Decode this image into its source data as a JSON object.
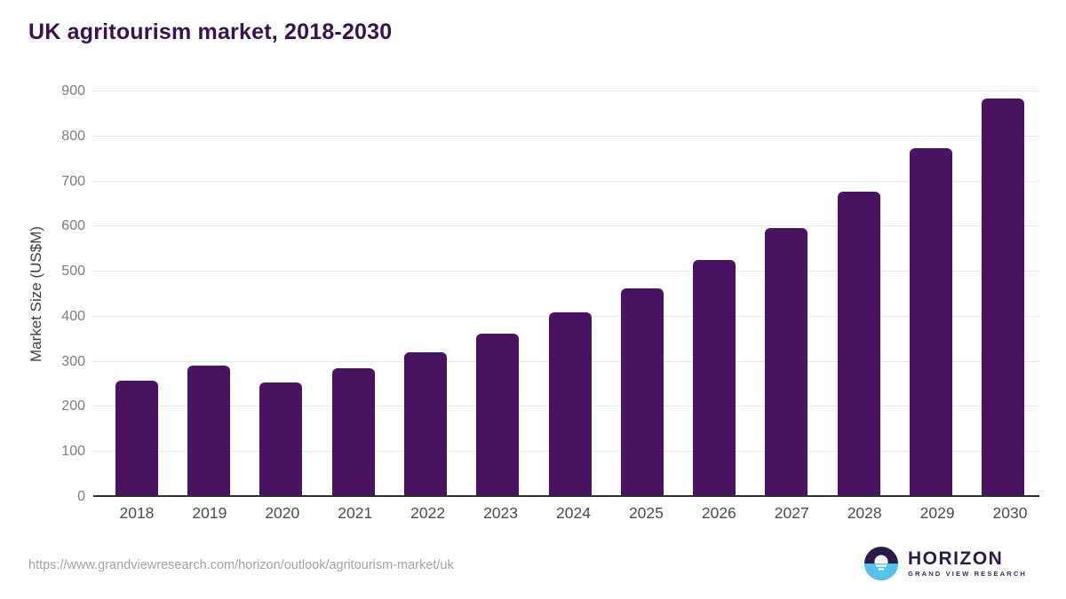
{
  "title": "UK agritourism market, 2018-2030",
  "chart_data": {
    "type": "bar",
    "title": "UK agritourism market, 2018-2030",
    "categories": [
      "2018",
      "2019",
      "2020",
      "2021",
      "2022",
      "2023",
      "2024",
      "2025",
      "2026",
      "2027",
      "2028",
      "2029",
      "2030"
    ],
    "values": [
      255,
      289,
      252,
      283,
      318,
      360,
      408,
      461,
      525,
      596,
      677,
      774,
      885
    ],
    "xlabel": "",
    "ylabel": "Market Size (US$M)",
    "ylim": [
      0,
      900
    ],
    "ytick_step": 100,
    "ytick_labels": [
      "0",
      "100",
      "200",
      "300",
      "400",
      "500",
      "600",
      "700",
      "800",
      "900"
    ],
    "grid": "horizontal",
    "legend": "none"
  },
  "colors": {
    "bar": "#4a1361",
    "title": "#3b1053",
    "gridline": "#e9e9e9",
    "baseline": "#2e2e2e",
    "y_tick_label": "#7d7d7d",
    "x_tick_label": "#4c4c4c",
    "url_text": "#a3a3a3",
    "logo_purple": "#2e1a47",
    "logo_blue": "#56c3ea"
  },
  "footer": {
    "source_url": "https://www.grandviewresearch.com/horizon/outlook/agritourism-market/uk",
    "logo": {
      "name": "HORIZON",
      "subtitle": "GRAND VIEW RESEARCH"
    }
  }
}
